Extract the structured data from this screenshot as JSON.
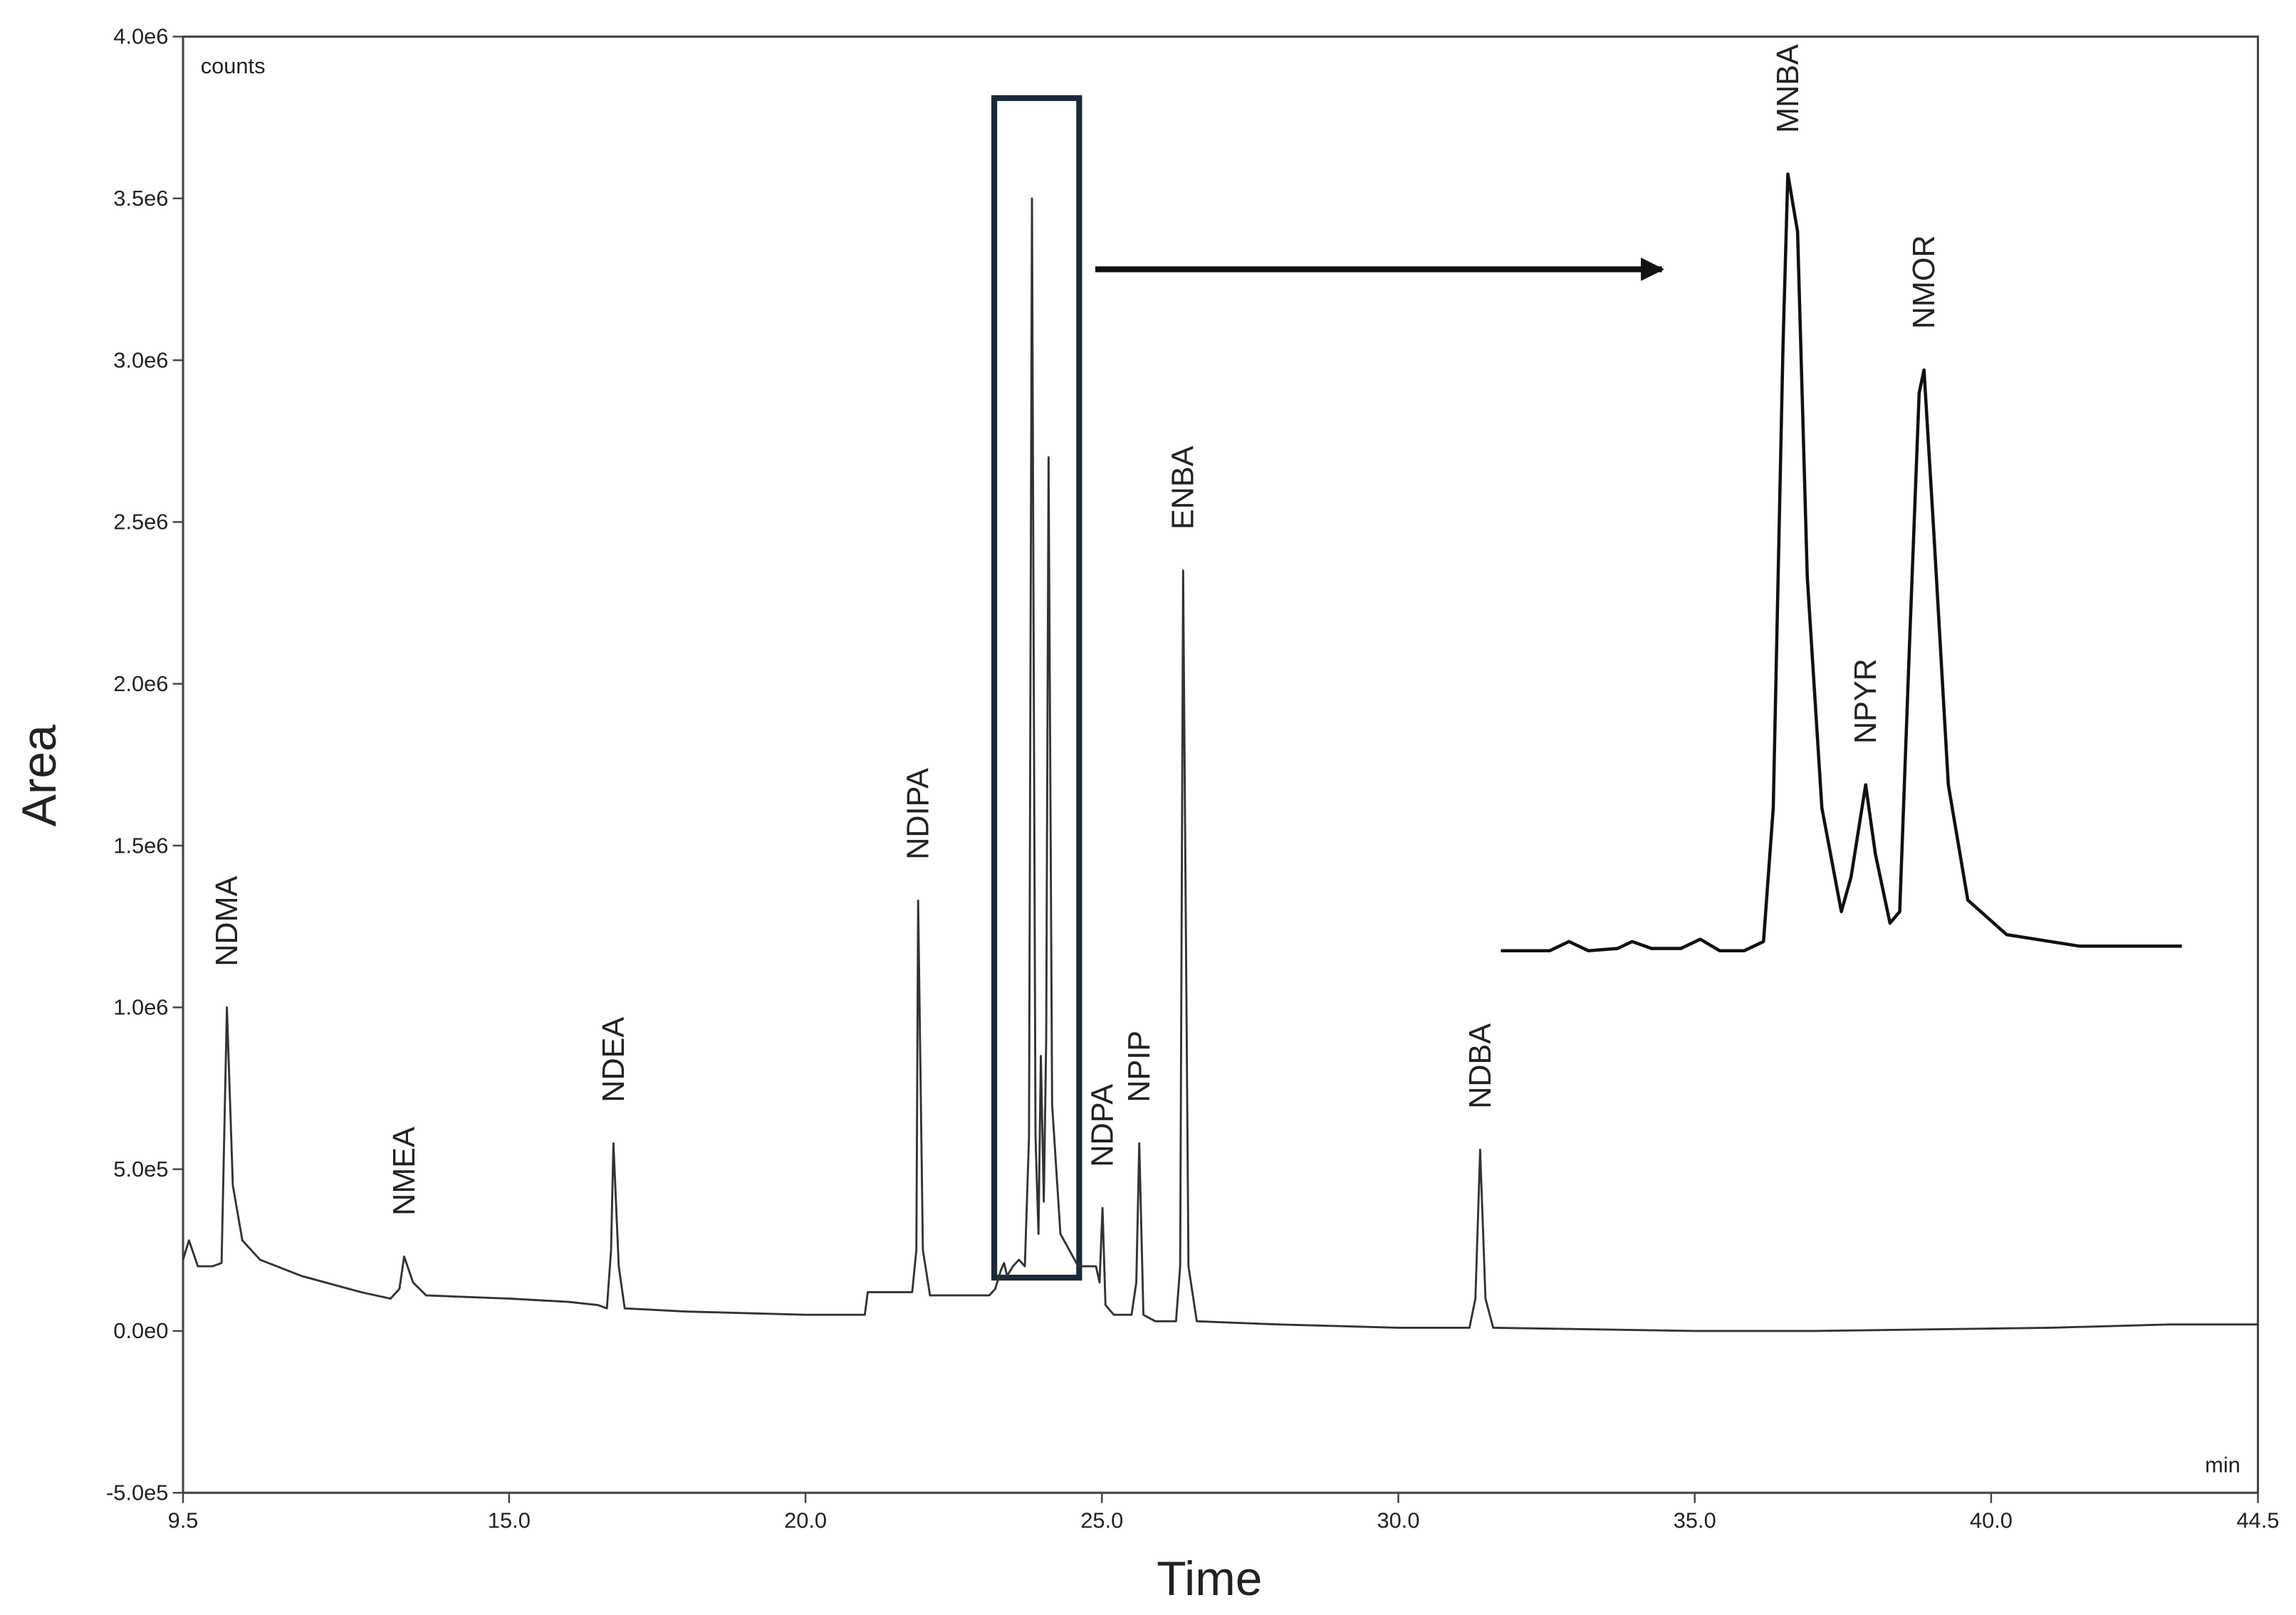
{
  "chart_data": [
    {
      "type": "line",
      "xlabel": "Time",
      "ylabel": "Area",
      "y_unit": "counts",
      "x_unit": "min",
      "color": "#333333",
      "xlim": [
        9.5,
        44.5
      ],
      "xticks": [
        9.5,
        {
          "value": 15,
          "label": "15.0"
        },
        {
          "value": 20,
          "label": "20.0"
        },
        {
          "value": 25,
          "label": "25.0"
        },
        {
          "value": 30,
          "label": "30.0"
        },
        {
          "value": 35,
          "label": "35.0"
        },
        {
          "value": 40,
          "label": "40.0"
        },
        44.5
      ],
      "ylim": [
        -500000,
        4000000
      ],
      "yticks": [
        {
          "value": -500000,
          "label": "-5.0e5"
        },
        {
          "value": 0,
          "label": "0.0e0"
        },
        {
          "value": 500000,
          "label": "5.0e5"
        },
        {
          "value": 1000000,
          "label": "1.0e6"
        },
        {
          "value": 1500000,
          "label": "1.5e6"
        },
        {
          "value": 2000000,
          "label": "2.0e6"
        },
        {
          "value": 2500000,
          "label": "2.5e6"
        },
        {
          "value": 3000000,
          "label": "3.0e6"
        },
        {
          "value": 3500000,
          "label": "3.5e6"
        },
        {
          "value": 4000000,
          "label": "4.0e6"
        }
      ],
      "x": [
        9.5,
        9.6,
        9.75,
        10.0,
        10.15,
        10.24,
        10.34,
        10.5,
        10.8,
        11.5,
        12.5,
        13.0,
        13.15,
        13.23,
        13.38,
        13.6,
        15.0,
        16.0,
        16.5,
        16.65,
        16.72,
        16.76,
        16.85,
        16.95,
        18.0,
        20.0,
        21.0,
        21.05,
        21.8,
        21.87,
        21.9,
        21.98,
        22.1,
        23.1,
        23.2,
        23.3,
        23.35,
        23.4,
        23.5,
        23.6,
        23.7,
        23.77,
        23.82,
        23.88,
        23.93,
        23.97,
        24.02,
        24.06,
        24.1,
        24.16,
        24.3,
        24.6,
        24.9,
        24.96,
        25.01,
        25.06,
        25.2,
        25.5,
        25.58,
        25.63,
        25.7,
        25.9,
        26.25,
        26.32,
        26.37,
        26.46,
        26.6,
        28.0,
        30.0,
        31.2,
        31.3,
        31.38,
        31.47,
        31.6,
        35.0,
        37.0,
        41.0,
        43.0,
        44.5
      ],
      "values": [
        220000,
        280000,
        200000,
        200000,
        210000,
        1000000,
        450000,
        280000,
        220000,
        170000,
        120000,
        100000,
        130000,
        230000,
        150000,
        110000,
        100000,
        90000,
        80000,
        70000,
        250000,
        580000,
        200000,
        70000,
        60000,
        50000,
        50000,
        120000,
        120000,
        250000,
        1330000,
        250000,
        110000,
        110000,
        130000,
        190000,
        210000,
        170000,
        200000,
        220000,
        200000,
        600000,
        3500000,
        600000,
        300000,
        850000,
        400000,
        900000,
        2700000,
        700000,
        300000,
        200000,
        200000,
        150000,
        380000,
        80000,
        50000,
        50000,
        150000,
        580000,
        50000,
        30000,
        30000,
        200000,
        2350000,
        200000,
        30000,
        20000,
        10000,
        10000,
        100000,
        560000,
        100000,
        10000,
        0,
        0,
        10000,
        20000,
        20000
      ],
      "peaks": [
        {
          "label": "NDMA",
          "x": 10.24,
          "y": 1000000
        },
        {
          "label": "NMEA",
          "x": 13.23,
          "y": 230000
        },
        {
          "label": "NDEA",
          "x": 16.76,
          "y": 580000
        },
        {
          "label": "NDIPA",
          "x": 21.9,
          "y": 1330000
        },
        {
          "label": "NDPA",
          "x": 25.01,
          "y": 380000
        },
        {
          "label": "NPIP",
          "x": 25.63,
          "y": 580000
        },
        {
          "label": "ENBA",
          "x": 26.37,
          "y": 2350000
        },
        {
          "label": "NDBA",
          "x": 31.38,
          "y": 560000
        }
      ]
    },
    {
      "type": "line",
      "color": "#111111",
      "xlim": [
        23.16,
        24.56
      ],
      "ylim": [
        0,
        3600000
      ],
      "x": [
        23.16,
        23.26,
        23.3,
        23.34,
        23.4,
        23.43,
        23.47,
        23.53,
        23.57,
        23.61,
        23.66,
        23.7,
        23.72,
        23.74,
        23.75,
        23.77,
        23.79,
        23.82,
        23.86,
        23.88,
        23.91,
        23.93,
        23.96,
        23.98,
        24.0,
        24.02,
        24.03,
        24.05,
        24.08,
        24.12,
        24.2,
        24.35,
        24.56
      ],
      "values": [
        180000,
        180000,
        220000,
        180000,
        190000,
        220000,
        190000,
        190000,
        230000,
        180000,
        180000,
        220000,
        800000,
        2800000,
        3550000,
        3300000,
        1800000,
        800000,
        350000,
        500000,
        900000,
        600000,
        300000,
        350000,
        1500000,
        2600000,
        2700000,
        2000000,
        900000,
        400000,
        250000,
        200000,
        200000
      ],
      "peaks": [
        {
          "label": "MNBA",
          "x": 23.75,
          "y": 3550000
        },
        {
          "label": "NPYR",
          "x": 23.91,
          "y": 900000
        },
        {
          "label": "NMOR",
          "x": 24.03,
          "y": 2700000
        }
      ]
    }
  ]
}
